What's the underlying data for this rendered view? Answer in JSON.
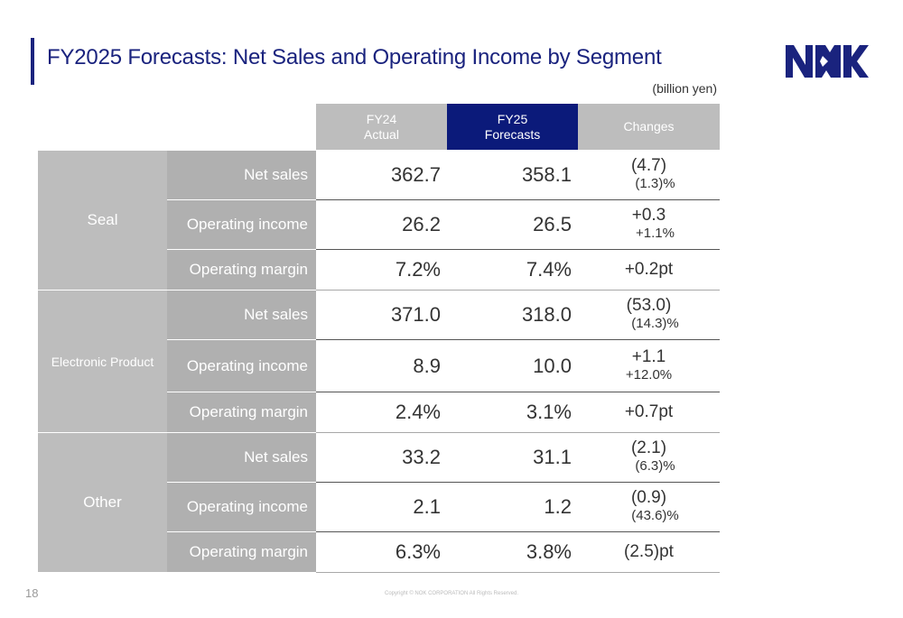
{
  "title": "FY2025 Forecasts: Net Sales and Operating Income by Segment",
  "logo_text": "NOK",
  "unit": "(billion yen)",
  "headers": {
    "fy24_line1": "FY24",
    "fy24_line2": "Actual",
    "fy25_line1": "FY25",
    "fy25_line2": "Forecasts",
    "changes": "Changes"
  },
  "segments": [
    {
      "name": "Seal",
      "rows": [
        {
          "metric": "Net sales",
          "fy24": "362.7",
          "fy25": "358.1",
          "change1": "(4.7)",
          "change2": "(1.3)%"
        },
        {
          "metric": "Operating income",
          "fy24": "26.2",
          "fy25": "26.5",
          "change1": "+0.3",
          "change2": "+1.1%"
        },
        {
          "metric": "Operating margin",
          "fy24": "7.2%",
          "fy25": "7.4%",
          "change1": "+0.2pt"
        }
      ]
    },
    {
      "name": "Electronic Product",
      "rows": [
        {
          "metric": "Net sales",
          "fy24": "371.0",
          "fy25": "318.0",
          "change1": "(53.0)",
          "change2": "(14.3)%"
        },
        {
          "metric": "Operating income",
          "fy24": "8.9",
          "fy25": "10.0",
          "change1": "+1.1",
          "change2": "+12.0%"
        },
        {
          "metric": "Operating margin",
          "fy24": "2.4%",
          "fy25": "3.1%",
          "change1": "+0.7pt"
        }
      ]
    },
    {
      "name": "Other",
      "rows": [
        {
          "metric": "Net sales",
          "fy24": "33.2",
          "fy25": "31.1",
          "change1": "(2.1)",
          "change2": "(6.3)%"
        },
        {
          "metric": "Operating income",
          "fy24": "2.1",
          "fy25": "1.2",
          "change1": "(0.9)",
          "change2": "(43.6)%"
        },
        {
          "metric": "Operating margin",
          "fy24": "6.3%",
          "fy25": "3.8%",
          "change1": "(2.5)pt"
        }
      ]
    }
  ],
  "page_number": "18",
  "copyright": "Copyright © NOK CORPORATION All Rights Reserved."
}
